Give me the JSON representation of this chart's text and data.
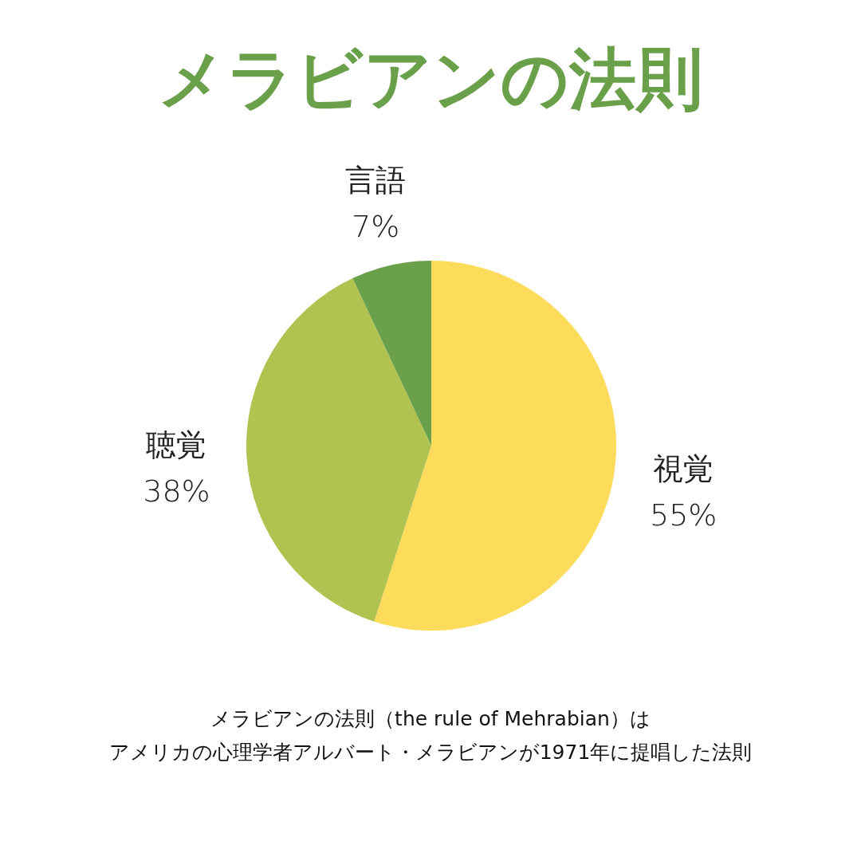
{
  "chart_data": {
    "type": "pie",
    "title": "メラビアンの法則",
    "categories": [
      "視覚",
      "聴覚",
      "言語"
    ],
    "values": [
      55,
      38,
      7
    ],
    "value_labels": [
      "55%",
      "38%",
      "7%"
    ],
    "colors": [
      "#fddc5c",
      "#b0c24f",
      "#6aa04a"
    ],
    "annotations": [
      "メラビアンの法則（the rule of Mehrabian）は",
      "アメリカの心理学者アルバート・メラビアンが1971年に提唱した法則"
    ]
  }
}
